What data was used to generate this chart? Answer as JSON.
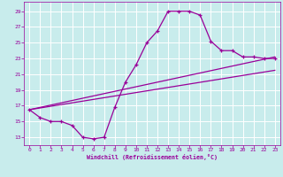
{
  "background_color": "#c8ecec",
  "grid_color": "#ffffff",
  "line_color": "#990099",
  "xlabel": "Windchill (Refroidissement éolien,°C)",
  "xlabel_color": "#990099",
  "yticks": [
    13,
    15,
    17,
    19,
    21,
    23,
    25,
    27,
    29
  ],
  "xticks": [
    0,
    1,
    2,
    3,
    4,
    5,
    6,
    7,
    8,
    9,
    10,
    11,
    12,
    13,
    14,
    15,
    16,
    17,
    18,
    19,
    20,
    21,
    22,
    23
  ],
  "xlim": [
    -0.5,
    23.5
  ],
  "ylim": [
    12.0,
    30.2
  ],
  "curve1_x": [
    0,
    1,
    2,
    3,
    4,
    5,
    6,
    7,
    8,
    9,
    10,
    11,
    12,
    13,
    14,
    15,
    16,
    17,
    18,
    19,
    20,
    21,
    22,
    23
  ],
  "curve1_y": [
    16.5,
    15.5,
    15.0,
    15.0,
    14.5,
    13.0,
    12.8,
    13.0,
    16.8,
    20.0,
    22.2,
    25.0,
    26.5,
    29.0,
    29.0,
    29.0,
    28.5,
    25.2,
    24.0,
    24.0,
    23.2,
    23.2,
    23.0,
    23.0
  ],
  "straight_line1_x": [
    0,
    23
  ],
  "straight_line1_y": [
    16.5,
    21.5
  ],
  "straight_line2_x": [
    0,
    23
  ],
  "straight_line2_y": [
    16.5,
    23.2
  ]
}
